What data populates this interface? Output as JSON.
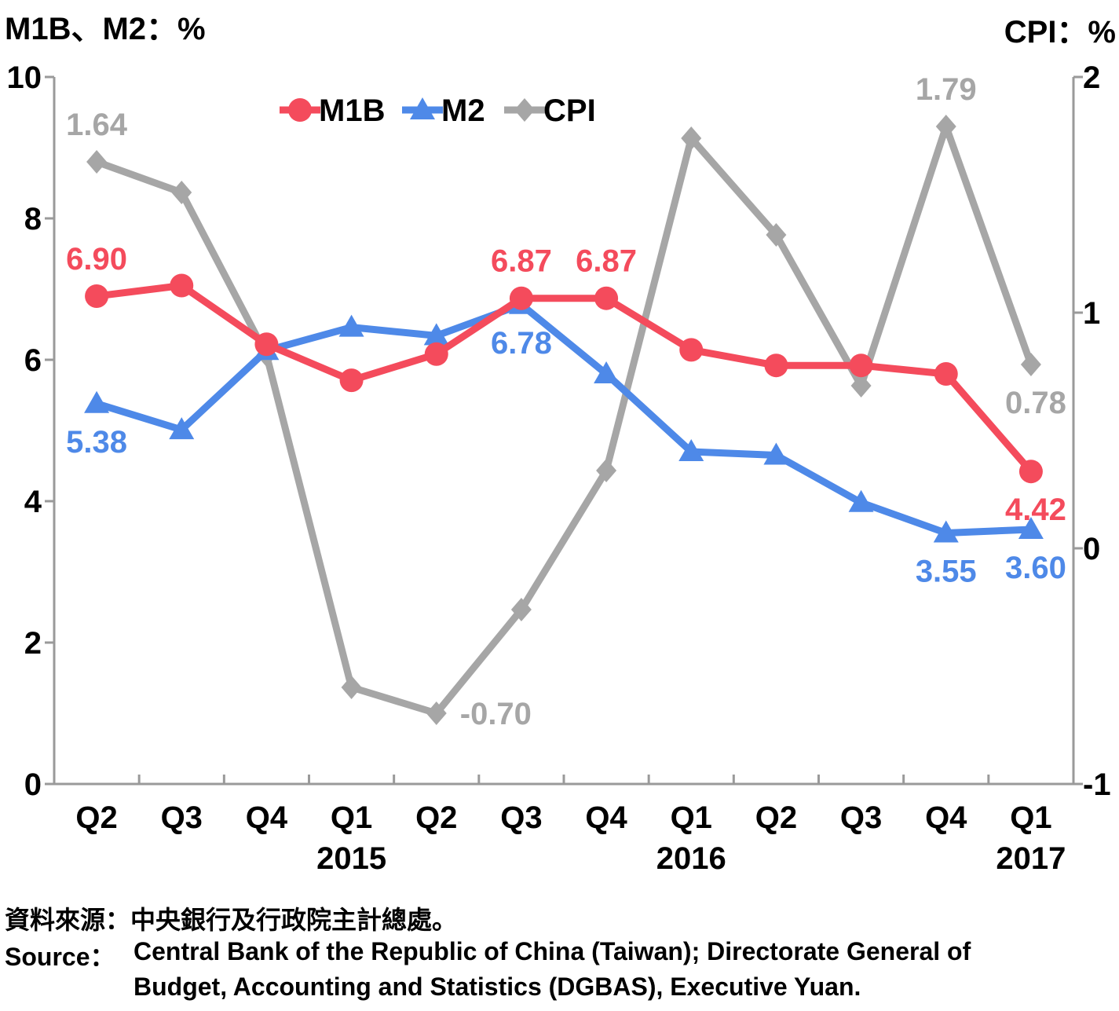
{
  "chart_data": {
    "type": "line",
    "left_axis_title": "M1B、M2：%",
    "right_axis_title": "CPI：%",
    "categories": [
      "Q2",
      "Q3",
      "Q4",
      "Q1",
      "Q2",
      "Q3",
      "Q4",
      "Q1",
      "Q2",
      "Q3",
      "Q4",
      "Q1"
    ],
    "year_labels": [
      {
        "label": "2015",
        "category_index": 3
      },
      {
        "label": "2016",
        "category_index": 7
      },
      {
        "label": "2017",
        "category_index": 11
      }
    ],
    "y_left": {
      "min": 0,
      "max": 10,
      "ticks": [
        "0",
        "2",
        "4",
        "6",
        "8",
        "10"
      ]
    },
    "y_right": {
      "min": -1,
      "max": 2,
      "ticks": [
        "-1",
        "0",
        "1",
        "2"
      ]
    },
    "grid": false,
    "legend_position": "top",
    "series": [
      {
        "name": "M1B",
        "axis": "left",
        "color": "#F44B5C",
        "marker": "circle",
        "values": [
          6.9,
          7.05,
          6.22,
          5.71,
          6.08,
          6.87,
          6.87,
          6.14,
          5.92,
          5.92,
          5.8,
          4.42
        ],
        "labels": [
          {
            "index": 0,
            "text": "6.90",
            "pos": "above"
          },
          {
            "index": 5,
            "text": "6.87",
            "pos": "above"
          },
          {
            "index": 6,
            "text": "6.87",
            "pos": "above"
          },
          {
            "index": 11,
            "text": "4.42",
            "pos": "below"
          }
        ]
      },
      {
        "name": "M2",
        "axis": "left",
        "color": "#4E89E8",
        "marker": "triangle",
        "values": [
          5.38,
          5.01,
          6.13,
          6.46,
          6.34,
          6.78,
          5.8,
          4.7,
          4.65,
          3.98,
          3.55,
          3.6
        ],
        "labels": [
          {
            "index": 0,
            "text": "5.38",
            "pos": "below"
          },
          {
            "index": 5,
            "text": "6.78",
            "pos": "below"
          },
          {
            "index": 10,
            "text": "3.55",
            "pos": "below"
          },
          {
            "index": 11,
            "text": "3.60",
            "pos": "below"
          }
        ]
      },
      {
        "name": "CPI",
        "axis": "right",
        "color": "#A6A6A6",
        "marker": "diamond",
        "values": [
          1.64,
          1.51,
          0.82,
          -0.59,
          -0.7,
          -0.26,
          0.33,
          1.74,
          1.33,
          0.69,
          1.79,
          0.78
        ],
        "labels": [
          {
            "index": 0,
            "text": "1.64",
            "pos": "above"
          },
          {
            "index": 4,
            "text": "-0.70",
            "pos": "right"
          },
          {
            "index": 10,
            "text": "1.79",
            "pos": "above"
          },
          {
            "index": 11,
            "text": "0.78",
            "pos": "below"
          }
        ]
      }
    ]
  },
  "source": {
    "zh": "資料來源：中央銀行及行政院主計總處。",
    "en_label": "Source：",
    "en_line1": "Central Bank of the Republic of China (Taiwan); Directorate General of",
    "en_line2": "Budget, Accounting and Statistics (DGBAS), Executive Yuan."
  }
}
